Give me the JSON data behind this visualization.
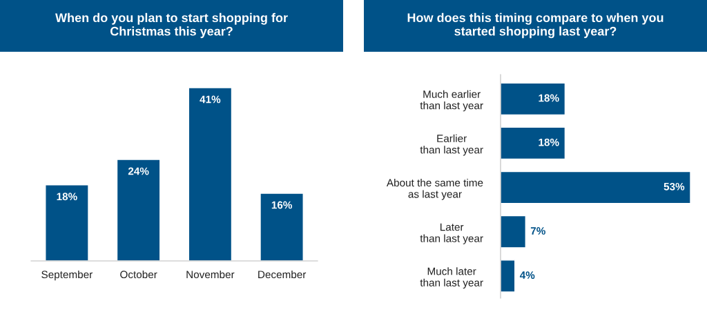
{
  "chart_data": [
    {
      "type": "bar",
      "title": "When do you plan to start shopping for\nChristmas this year?",
      "categories": [
        "September",
        "October",
        "November",
        "December"
      ],
      "values": [
        18,
        24,
        41,
        16
      ],
      "value_labels": [
        "18%",
        "24%",
        "41%",
        "16%"
      ],
      "color": "#005288"
    },
    {
      "type": "bar",
      "orientation": "horizontal",
      "title": "How does this timing compare to when you\nstarted shopping last year?",
      "categories": [
        "Much earlier\nthan last year",
        "Earlier\nthan last year",
        "About the same time\nas last year",
        "Later\nthan last year",
        "Much later\nthan last year"
      ],
      "values": [
        18,
        18,
        53,
        7,
        4
      ],
      "value_labels": [
        "18%",
        "18%",
        "53%",
        "7%",
        "4%"
      ],
      "color": "#005288"
    }
  ]
}
